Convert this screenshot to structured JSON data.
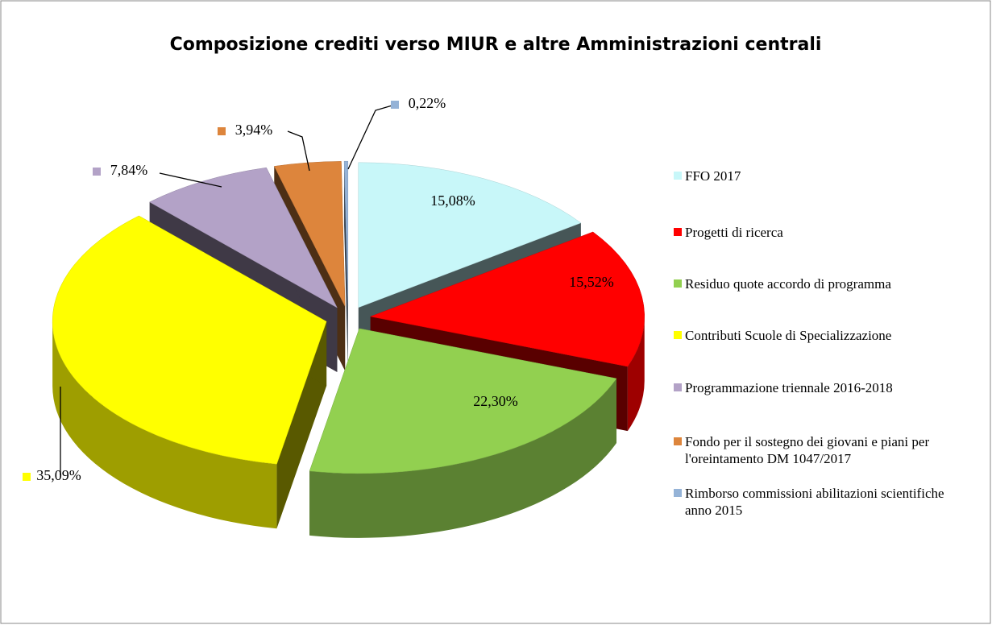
{
  "chart_data": {
    "type": "pie",
    "title": "Composizione crediti verso MIUR e altre Amministrazioni centrali",
    "categories": [
      "FFO 2017",
      "Progetti di ricerca",
      "Residuo quote accordo di programma",
      "Contributi Scuole di Specializzazione",
      "Programmazione triennale 2016-2018",
      "Fondo per il sostegno dei giovani e piani per l'oreintamento DM 1047/2017",
      "Rimborso commissioni abilitazioni scientifiche anno 2015"
    ],
    "values": [
      15.08,
      15.52,
      22.3,
      35.09,
      7.84,
      3.94,
      0.22
    ],
    "value_labels": [
      "15,08%",
      "15,52%",
      "22,30%",
      "35,09%",
      "7,84%",
      "3,94%",
      "0,22%"
    ],
    "colors": [
      "#c8f7f9",
      "#ff0000",
      "#92d050",
      "#ffff00",
      "#b3a2c7",
      "#dd853c",
      "#95b3d7"
    ],
    "legend": "right"
  }
}
